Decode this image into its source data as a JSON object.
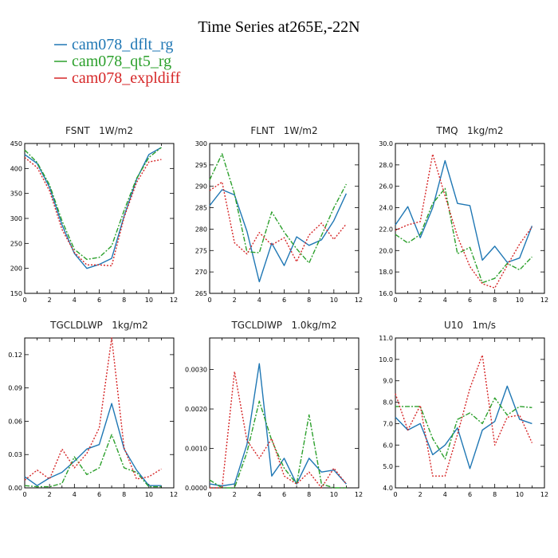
{
  "title": "Time Series at265E,-22N",
  "colors": {
    "dflt": "#1f77b4",
    "qt5": "#2ca02c",
    "expl": "#d62728"
  },
  "legend": [
    {
      "key": "dflt",
      "label": "cam078_dflt_rg"
    },
    {
      "key": "qt5",
      "label": "cam078_qt5_rg"
    },
    {
      "key": "expl",
      "label": "cam078_expldiff"
    }
  ],
  "chart_data": [
    {
      "type": "line",
      "title": "FSNT   1W/m2",
      "xlim": [
        0,
        12
      ],
      "ylim": [
        150,
        450
      ],
      "xticks": [
        "0",
        "2",
        "4",
        "6",
        "8",
        "10",
        "12"
      ],
      "yticks": [
        "150",
        "200",
        "250",
        "300",
        "350",
        "400",
        "450"
      ],
      "x": [
        0,
        1,
        2,
        3,
        4,
        5,
        6,
        7,
        8,
        9,
        10,
        11
      ],
      "series": [
        {
          "name": "cam078_dflt_rg",
          "key": "dflt",
          "values": [
            428,
            410,
            362,
            287,
            230,
            200,
            208,
            220,
            305,
            378,
            428,
            442
          ]
        },
        {
          "name": "cam078_qt5_rg",
          "key": "qt5",
          "values": [
            437,
            412,
            367,
            295,
            238,
            218,
            222,
            245,
            316,
            380,
            422,
            442
          ]
        },
        {
          "name": "cam078_expldiff",
          "key": "expl",
          "values": [
            422,
            402,
            355,
            278,
            232,
            207,
            207,
            205,
            302,
            372,
            413,
            418
          ]
        }
      ]
    },
    {
      "type": "line",
      "title": "FLNT   1W/m2",
      "xlim": [
        0,
        12
      ],
      "ylim": [
        265,
        300
      ],
      "xticks": [
        "0",
        "2",
        "4",
        "6",
        "8",
        "10",
        "12"
      ],
      "yticks": [
        "265",
        "270",
        "275",
        "280",
        "285",
        "290",
        "295",
        "300"
      ],
      "x": [
        0,
        1,
        2,
        3,
        4,
        5,
        6,
        7,
        8,
        9,
        10,
        11
      ],
      "series": [
        {
          "name": "cam078_dflt_rg",
          "key": "dflt",
          "values": [
            285.5,
            289.2,
            288.0,
            279.5,
            267.7,
            276.7,
            271.5,
            278.2,
            276.2,
            277.5,
            282.0,
            288.3
          ]
        },
        {
          "name": "cam078_qt5_rg",
          "key": "qt5",
          "values": [
            291.5,
            297.6,
            288.2,
            274.7,
            274.5,
            284.0,
            279.3,
            275.4,
            272.1,
            278.5,
            285.0,
            290.5
          ]
        },
        {
          "name": "cam078_expldiff",
          "key": "expl",
          "values": [
            289.0,
            291.0,
            276.8,
            274.2,
            279.2,
            276.3,
            278.0,
            272.4,
            278.6,
            281.4,
            277.6,
            281.2
          ]
        }
      ]
    },
    {
      "type": "line",
      "title": "TMQ   1kg/m2",
      "xlim": [
        0,
        12
      ],
      "ylim": [
        16.0,
        30.0
      ],
      "xticks": [
        "0",
        "2",
        "4",
        "6",
        "8",
        "10",
        "12"
      ],
      "yticks": [
        "16.0",
        "18.0",
        "20.0",
        "22.0",
        "24.0",
        "26.0",
        "28.0",
        "30.0"
      ],
      "x": [
        0,
        1,
        2,
        3,
        4,
        5,
        6,
        7,
        8,
        9,
        10,
        11
      ],
      "series": [
        {
          "name": "cam078_dflt_rg",
          "key": "dflt",
          "values": [
            22.4,
            24.1,
            21.2,
            24.0,
            28.4,
            24.4,
            24.2,
            19.1,
            20.4,
            18.9,
            19.3,
            22.3
          ]
        },
        {
          "name": "cam078_qt5_rg",
          "key": "qt5",
          "values": [
            21.5,
            20.7,
            21.5,
            24.4,
            25.8,
            19.7,
            20.3,
            17.0,
            17.4,
            18.8,
            18.2,
            19.4
          ]
        },
        {
          "name": "cam078_expldiff",
          "key": "expl",
          "values": [
            21.9,
            22.4,
            22.7,
            29.0,
            25.1,
            21.3,
            18.5,
            16.9,
            16.5,
            18.6,
            20.6,
            22.2
          ]
        }
      ]
    },
    {
      "type": "line",
      "title": "TGCLDLWP   1kg/m2",
      "xlim": [
        0,
        12
      ],
      "ylim": [
        0.0,
        0.135
      ],
      "xticks": [
        "0",
        "2",
        "4",
        "6",
        "8",
        "10",
        "12"
      ],
      "yticks": [
        "0.00",
        "0.03",
        "0.06",
        "0.09",
        "0.12"
      ],
      "x": [
        0,
        1,
        2,
        3,
        4,
        5,
        6,
        7,
        8,
        9,
        10,
        11
      ],
      "series": [
        {
          "name": "cam078_dflt_rg",
          "key": "dflt",
          "values": [
            0.01,
            0.002,
            0.009,
            0.014,
            0.024,
            0.035,
            0.039,
            0.076,
            0.035,
            0.016,
            0.002,
            0.002
          ]
        },
        {
          "name": "cam078_qt5_rg",
          "key": "qt5",
          "values": [
            0.002,
            0.001,
            0.001,
            0.004,
            0.028,
            0.012,
            0.018,
            0.048,
            0.018,
            0.014,
            0.001,
            0.001
          ]
        },
        {
          "name": "cam078_expldiff",
          "key": "expl",
          "values": [
            0.007,
            0.016,
            0.008,
            0.035,
            0.018,
            0.031,
            0.054,
            0.135,
            0.036,
            0.008,
            0.01,
            0.017
          ]
        }
      ]
    },
    {
      "type": "line",
      "title": "TGCLDIWP   1.0kg/m2",
      "xlim": [
        0,
        12
      ],
      "ylim": [
        0.0,
        0.0038
      ],
      "xticks": [
        "0",
        "2",
        "4",
        "6",
        "8",
        "10",
        "12"
      ],
      "yticks": [
        "0.0000",
        "0.0010",
        "0.0020",
        "0.0030"
      ],
      "x": [
        0,
        1,
        2,
        3,
        4,
        5,
        6,
        7,
        8,
        9,
        10,
        11
      ],
      "series": [
        {
          "name": "cam078_dflt_rg",
          "key": "dflt",
          "values": [
            0.0001,
            5e-05,
            0.0001,
            0.0011,
            0.00315,
            0.0003,
            0.00075,
            0.0001,
            0.00075,
            0.0004,
            0.00045,
            0.0001
          ]
        },
        {
          "name": "cam078_qt5_rg",
          "key": "qt5",
          "values": [
            0.0002,
            0.0,
            0.0,
            0.0009,
            0.0022,
            0.0012,
            0.0005,
            0.0001,
            0.00185,
            0.0001,
            0.0,
            0.0
          ]
        },
        {
          "name": "cam078_expldiff",
          "key": "expl",
          "values": [
            0.0,
            0.0,
            0.00295,
            0.0012,
            0.00075,
            0.00125,
            0.0003,
            0.0001,
            0.0004,
            0.0,
            0.0005,
            0.0001
          ]
        }
      ]
    },
    {
      "type": "line",
      "title": "U10   1m/s",
      "xlim": [
        0,
        12
      ],
      "ylim": [
        4.0,
        11.0
      ],
      "xticks": [
        "0",
        "2",
        "4",
        "6",
        "8",
        "10",
        "12"
      ],
      "yticks": [
        "4.0",
        "5.0",
        "6.0",
        "7.0",
        "8.0",
        "9.0",
        "10.0",
        "11.0"
      ],
      "x": [
        0,
        1,
        2,
        3,
        4,
        5,
        6,
        7,
        8,
        9,
        10,
        11
      ],
      "series": [
        {
          "name": "cam078_dflt_rg",
          "key": "dflt",
          "values": [
            7.3,
            6.7,
            7.0,
            5.55,
            6.0,
            6.8,
            4.9,
            6.7,
            7.1,
            8.75,
            7.2,
            7.0
          ]
        },
        {
          "name": "cam078_qt5_rg",
          "key": "qt5",
          "values": [
            7.8,
            7.8,
            7.8,
            6.3,
            5.35,
            7.2,
            7.5,
            7.0,
            8.2,
            7.4,
            7.8,
            7.75
          ]
        },
        {
          "name": "cam078_expldiff",
          "key": "expl",
          "values": [
            8.4,
            6.7,
            7.85,
            4.55,
            4.55,
            6.5,
            8.65,
            10.2,
            6.0,
            7.3,
            7.4,
            6.1
          ]
        }
      ]
    }
  ]
}
